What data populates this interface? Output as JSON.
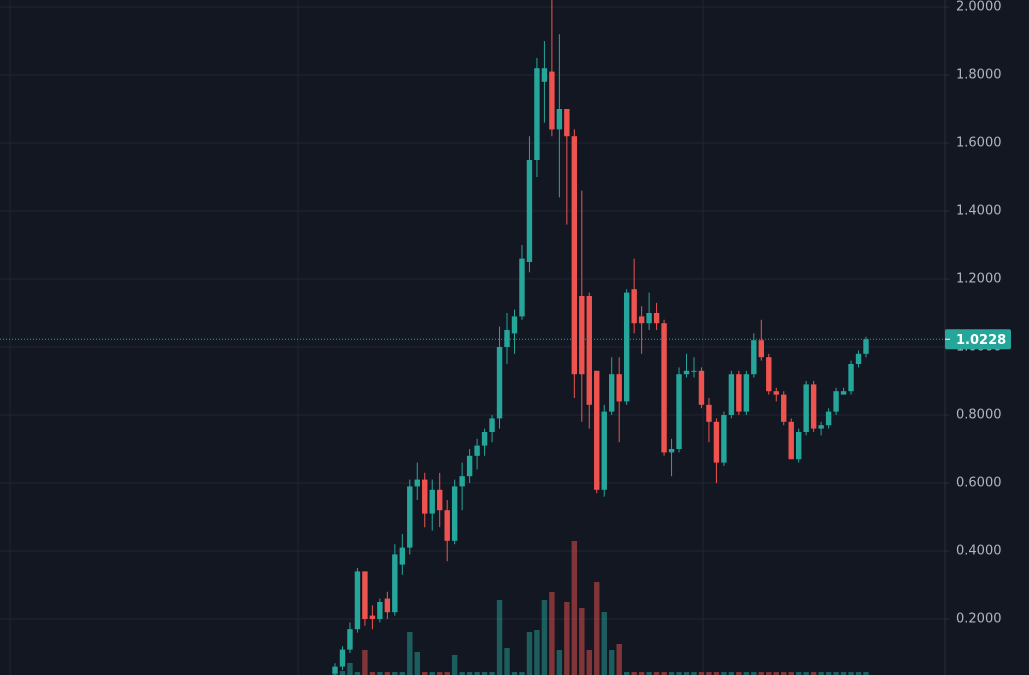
{
  "chart_data": {
    "type": "candlestick",
    "up_color": "#26a69a",
    "down_color": "#ef5350",
    "open": [
      0.04,
      0.06,
      0.11,
      0.17,
      0.34,
      0.21,
      0.2,
      0.26,
      0.22,
      0.36,
      0.41,
      0.59,
      0.61,
      0.51,
      0.58,
      0.52,
      0.43,
      0.59,
      0.62,
      0.68,
      0.71,
      0.75,
      0.79,
      1.0,
      1.04,
      1.09,
      1.25,
      1.55,
      1.78,
      1.81,
      1.64,
      1.7,
      1.62,
      1.15,
      1.15,
      0.93,
      0.58,
      0.81,
      0.92,
      0.84,
      1.17,
      1.09,
      1.07,
      1.1,
      1.07,
      0.69,
      0.7,
      0.92,
      0.93,
      0.93,
      0.83,
      0.78,
      0.66,
      0.8,
      0.92,
      0.81,
      0.92,
      1.02,
      0.97,
      0.87,
      0.86,
      0.78,
      0.67,
      0.75,
      0.89,
      0.76,
      0.77,
      0.81,
      0.86,
      0.87,
      0.95,
      0.98
    ],
    "high": [
      0.07,
      0.12,
      0.19,
      0.35,
      0.34,
      0.24,
      0.26,
      0.28,
      0.42,
      0.45,
      0.61,
      0.66,
      0.63,
      0.61,
      0.63,
      0.55,
      0.61,
      0.66,
      0.7,
      0.73,
      0.76,
      0.8,
      1.06,
      1.1,
      1.11,
      1.3,
      1.62,
      1.85,
      1.9,
      2.03,
      1.92,
      1.7,
      1.64,
      1.46,
      1.16,
      0.93,
      0.83,
      0.97,
      0.97,
      1.17,
      1.26,
      1.12,
      1.16,
      1.13,
      1.08,
      0.73,
      0.94,
      0.98,
      0.97,
      0.94,
      0.85,
      0.79,
      0.81,
      0.93,
      0.93,
      0.93,
      1.04,
      1.08,
      0.98,
      0.88,
      0.87,
      0.79,
      0.76,
      0.9,
      0.9,
      0.78,
      0.82,
      0.88,
      0.88,
      0.96,
      0.99,
      1.03
    ],
    "low": [
      0.035,
      0.05,
      0.1,
      0.16,
      0.18,
      0.17,
      0.19,
      0.2,
      0.21,
      0.33,
      0.39,
      0.55,
      0.47,
      0.46,
      0.47,
      0.37,
      0.42,
      0.52,
      0.6,
      0.64,
      0.68,
      0.72,
      0.76,
      0.95,
      0.98,
      1.08,
      1.22,
      1.5,
      1.66,
      1.62,
      1.44,
      1.36,
      0.85,
      0.78,
      0.76,
      0.57,
      0.56,
      0.8,
      0.72,
      0.83,
      1.04,
      0.98,
      1.05,
      1.05,
      0.68,
      0.62,
      0.69,
      0.91,
      0.91,
      0.82,
      0.72,
      0.6,
      0.65,
      0.79,
      0.8,
      0.8,
      0.91,
      0.96,
      0.86,
      0.84,
      0.77,
      0.67,
      0.66,
      0.74,
      0.75,
      0.74,
      0.76,
      0.8,
      0.86,
      0.86,
      0.94,
      0.97
    ],
    "close": [
      0.06,
      0.11,
      0.17,
      0.34,
      0.2,
      0.2,
      0.25,
      0.22,
      0.39,
      0.41,
      0.59,
      0.61,
      0.51,
      0.58,
      0.52,
      0.43,
      0.59,
      0.62,
      0.68,
      0.71,
      0.75,
      0.79,
      1.0,
      1.05,
      1.09,
      1.26,
      1.55,
      1.82,
      1.82,
      1.64,
      1.7,
      1.62,
      0.92,
      0.92,
      0.83,
      0.58,
      0.81,
      0.92,
      0.84,
      1.16,
      1.07,
      1.07,
      1.1,
      1.07,
      0.69,
      0.7,
      0.92,
      0.93,
      0.93,
      0.83,
      0.78,
      0.66,
      0.8,
      0.92,
      0.81,
      0.92,
      1.02,
      0.97,
      0.87,
      0.86,
      0.78,
      0.67,
      0.75,
      0.89,
      0.76,
      0.77,
      0.81,
      0.87,
      0.87,
      0.95,
      0.98,
      1.0228
    ],
    "volume": [
      3,
      4,
      12,
      3,
      25,
      3,
      3,
      3,
      3,
      3,
      43,
      23,
      3,
      3,
      3,
      3,
      20,
      3,
      3,
      3,
      3,
      3,
      75,
      27,
      3,
      3,
      43,
      45,
      75,
      83,
      25,
      73,
      134,
      67,
      25,
      93,
      63,
      25,
      31,
      3,
      3,
      3,
      3,
      3,
      3,
      3,
      3,
      3,
      3,
      3,
      3,
      3,
      3,
      3,
      3,
      3,
      3,
      3,
      3,
      3,
      3,
      3,
      3,
      3,
      3,
      3,
      3,
      3,
      3,
      3,
      3,
      3
    ],
    "last_price": 1.0228,
    "ylim": [
      0.0353,
      2.0206
    ],
    "yticks": [
      {
        "value": 0.2,
        "label": "0.2000"
      },
      {
        "value": 0.4,
        "label": "0.4000"
      },
      {
        "value": 0.6,
        "label": "0.6000"
      },
      {
        "value": 0.8,
        "label": "0.8000"
      },
      {
        "value": 1.0,
        "label": "1.0000"
      },
      {
        "value": 1.2,
        "label": "1.2000"
      },
      {
        "value": 1.4,
        "label": "1.4000"
      },
      {
        "value": 1.6,
        "label": "1.6000"
      },
      {
        "value": 1.8,
        "label": "1.8000"
      },
      {
        "value": 2.0,
        "label": "2.0000"
      }
    ],
    "grid": true
  }
}
